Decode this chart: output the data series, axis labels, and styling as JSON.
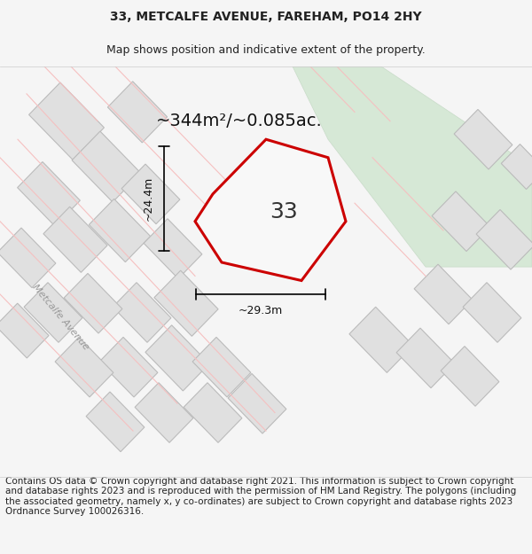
{
  "title_line1": "33, METCALFE AVENUE, FAREHAM, PO14 2HY",
  "title_line2": "Map shows position and indicative extent of the property.",
  "area_label": "~344m²/~0.085ac.",
  "number_label": "33",
  "dim_vertical": "~24.4m",
  "dim_horizontal": "~29.3m",
  "road_label": "Metcalfe Avenue",
  "footer_text": "Contains OS data © Crown copyright and database right 2021. This information is subject to Crown copyright and database rights 2023 and is reproduced with the permission of HM Land Registry. The polygons (including the associated geometry, namely x, y co-ordinates) are subject to Crown copyright and database rights 2023 Ordnance Survey 100026316.",
  "bg_color": "#f5f5f5",
  "map_bg": "#ffffff",
  "plot_fill": "#f0f0f0",
  "road_fill": "#d6e8d6",
  "road_stroke": "#c8dbc8",
  "street_color": "#f5c0c0",
  "boundary_color": "#cc0000",
  "dim_line_color": "#000000",
  "title_fontsize": 10,
  "subtitle_fontsize": 9,
  "area_fontsize": 14,
  "number_fontsize": 18,
  "dim_fontsize": 9,
  "footer_fontsize": 7.5
}
